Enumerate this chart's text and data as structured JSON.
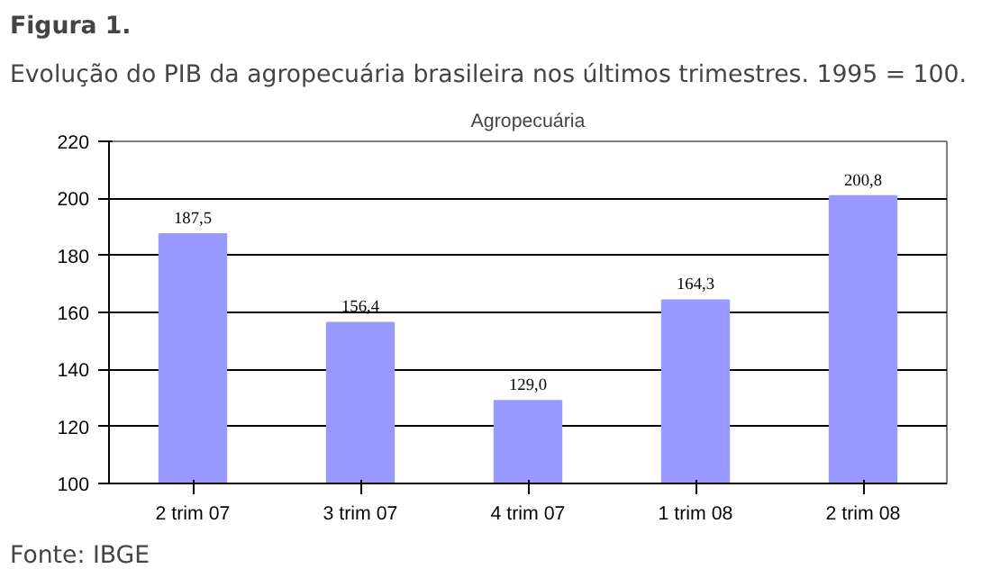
{
  "chart_data": {
    "type": "bar",
    "title": "Figura 1.",
    "subtitle": "Evolução do PIB da agropecuária brasileira nos últimos trimestres. 1995 = 100.",
    "xlabel": "Agropecuária",
    "categories": [
      "2 trim 07",
      "3 trim 07",
      "4 trim 07",
      "1 trim 08",
      "2 trim 08"
    ],
    "values": [
      187.5,
      156.4,
      129.0,
      164.3,
      200.8
    ],
    "value_labels": [
      "187,5",
      "156,4",
      "129,0",
      "164,3",
      "200,8"
    ],
    "color": "#9999ff",
    "ylim": [
      100,
      220
    ],
    "yticks": [
      100,
      120,
      140,
      160,
      180,
      200,
      220
    ],
    "grid": "y",
    "annotations": [
      "Fonte: IBGE"
    ]
  }
}
